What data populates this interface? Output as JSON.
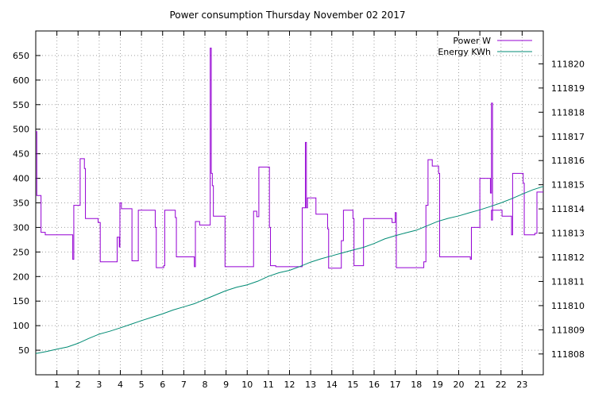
{
  "chart_data": {
    "type": "line",
    "title": "Power consumption Thursday November 02 2017",
    "x": {
      "range": [
        0,
        24
      ],
      "ticks": [
        1,
        2,
        3,
        4,
        5,
        6,
        7,
        8,
        9,
        10,
        11,
        12,
        13,
        14,
        15,
        16,
        17,
        18,
        19,
        20,
        21,
        22,
        23
      ],
      "tick_labels": [
        "1",
        "2",
        "3",
        "4",
        "5",
        "6",
        "7",
        "8",
        "9",
        "10",
        "11",
        "12",
        "13",
        "14",
        "15",
        "16",
        "17",
        "18",
        "19",
        "20",
        "21",
        "22",
        "23"
      ]
    },
    "y_left": {
      "range": [
        0,
        700
      ],
      "ticks": [
        50,
        100,
        150,
        200,
        250,
        300,
        350,
        400,
        450,
        500,
        550,
        600,
        650
      ],
      "tick_labels": [
        "50",
        "100",
        "150",
        "200",
        "250",
        "300",
        "350",
        "400",
        "450",
        "500",
        "550",
        "600",
        "650"
      ]
    },
    "y_right": {
      "range": [
        111807.14,
        111821.36
      ],
      "ticks": [
        111808,
        111809,
        111810,
        111811,
        111812,
        111813,
        111814,
        111815,
        111816,
        111817,
        111818,
        111819,
        111820
      ],
      "tick_labels": [
        "111808",
        "111809",
        "111810",
        "111811",
        "111812",
        "111813",
        "111814",
        "111815",
        "111816",
        "111817",
        "111818",
        "111819",
        "111820"
      ]
    },
    "grid": true,
    "legend": {
      "position": "top-right",
      "entries": [
        "Power W",
        "Energy KWh"
      ]
    },
    "series": [
      {
        "name": "Power W",
        "axis": "left",
        "color": "#9400d3",
        "step": true,
        "points": [
          [
            0.0,
            495
          ],
          [
            0.05,
            365
          ],
          [
            0.25,
            290
          ],
          [
            0.45,
            285
          ],
          [
            1.75,
            235
          ],
          [
            1.8,
            345
          ],
          [
            2.1,
            440
          ],
          [
            2.3,
            420
          ],
          [
            2.35,
            318
          ],
          [
            2.95,
            310
          ],
          [
            3.05,
            230
          ],
          [
            3.85,
            280
          ],
          [
            3.95,
            260
          ],
          [
            3.98,
            350
          ],
          [
            4.05,
            338
          ],
          [
            4.55,
            232
          ],
          [
            4.85,
            335
          ],
          [
            5.65,
            300
          ],
          [
            5.7,
            218
          ],
          [
            6.05,
            222
          ],
          [
            6.1,
            335
          ],
          [
            6.6,
            320
          ],
          [
            6.65,
            240
          ],
          [
            7.5,
            220
          ],
          [
            7.55,
            312
          ],
          [
            7.75,
            305
          ],
          [
            8.25,
            665
          ],
          [
            8.3,
            410
          ],
          [
            8.35,
            385
          ],
          [
            8.4,
            323
          ],
          [
            8.95,
            220
          ],
          [
            10.3,
            333
          ],
          [
            10.45,
            322
          ],
          [
            10.55,
            423
          ],
          [
            11.05,
            300
          ],
          [
            11.1,
            222
          ],
          [
            11.35,
            220
          ],
          [
            12.6,
            340
          ],
          [
            12.75,
            473
          ],
          [
            12.8,
            340
          ],
          [
            12.85,
            360
          ],
          [
            13.25,
            327
          ],
          [
            13.8,
            297
          ],
          [
            13.85,
            217
          ],
          [
            14.45,
            273
          ],
          [
            14.55,
            335
          ],
          [
            15.0,
            318
          ],
          [
            15.05,
            222
          ],
          [
            15.5,
            318
          ],
          [
            16.85,
            310
          ],
          [
            17.0,
            330
          ],
          [
            17.05,
            218
          ],
          [
            18.35,
            230
          ],
          [
            18.45,
            345
          ],
          [
            18.55,
            438
          ],
          [
            18.75,
            425
          ],
          [
            19.05,
            410
          ],
          [
            19.1,
            240
          ],
          [
            20.55,
            235
          ],
          [
            20.6,
            300
          ],
          [
            21.0,
            400
          ],
          [
            21.5,
            370
          ],
          [
            21.55,
            553
          ],
          [
            21.6,
            315
          ],
          [
            21.55,
            335
          ],
          [
            22.05,
            323
          ],
          [
            22.5,
            285
          ],
          [
            22.55,
            410
          ],
          [
            23.05,
            390
          ],
          [
            23.1,
            285
          ],
          [
            23.6,
            288
          ],
          [
            23.7,
            372
          ],
          [
            24.0,
            372
          ]
        ]
      },
      {
        "name": "Energy KWh",
        "axis": "right",
        "color": "#008b74",
        "step": false,
        "points": [
          [
            0.0,
            111808.02
          ],
          [
            0.5,
            111808.1
          ],
          [
            1.0,
            111808.2
          ],
          [
            1.5,
            111808.29
          ],
          [
            2.0,
            111808.44
          ],
          [
            2.5,
            111808.64
          ],
          [
            3.0,
            111808.82
          ],
          [
            3.5,
            111808.94
          ],
          [
            4.0,
            111809.08
          ],
          [
            4.5,
            111809.23
          ],
          [
            5.0,
            111809.38
          ],
          [
            5.5,
            111809.52
          ],
          [
            6.0,
            111809.66
          ],
          [
            6.5,
            111809.82
          ],
          [
            7.0,
            111809.95
          ],
          [
            7.5,
            111810.08
          ],
          [
            8.0,
            111810.26
          ],
          [
            8.5,
            111810.44
          ],
          [
            9.0,
            111810.62
          ],
          [
            9.5,
            111810.76
          ],
          [
            10.0,
            111810.86
          ],
          [
            10.5,
            111811.01
          ],
          [
            11.0,
            111811.21
          ],
          [
            11.5,
            111811.36
          ],
          [
            12.0,
            111811.46
          ],
          [
            12.5,
            111811.62
          ],
          [
            13.0,
            111811.8
          ],
          [
            13.5,
            111811.94
          ],
          [
            14.0,
            111812.06
          ],
          [
            14.5,
            111812.18
          ],
          [
            15.0,
            111812.3
          ],
          [
            15.5,
            111812.41
          ],
          [
            16.0,
            111812.57
          ],
          [
            16.5,
            111812.76
          ],
          [
            17.0,
            111812.89
          ],
          [
            17.5,
            111813.01
          ],
          [
            18.0,
            111813.12
          ],
          [
            18.5,
            111813.3
          ],
          [
            19.0,
            111813.48
          ],
          [
            19.5,
            111813.61
          ],
          [
            20.0,
            111813.71
          ],
          [
            20.5,
            111813.84
          ],
          [
            21.0,
            111813.96
          ],
          [
            21.5,
            111814.1
          ],
          [
            22.0,
            111814.25
          ],
          [
            22.5,
            111814.42
          ],
          [
            23.0,
            111814.61
          ],
          [
            23.5,
            111814.79
          ],
          [
            24.0,
            111814.93
          ]
        ]
      }
    ]
  }
}
